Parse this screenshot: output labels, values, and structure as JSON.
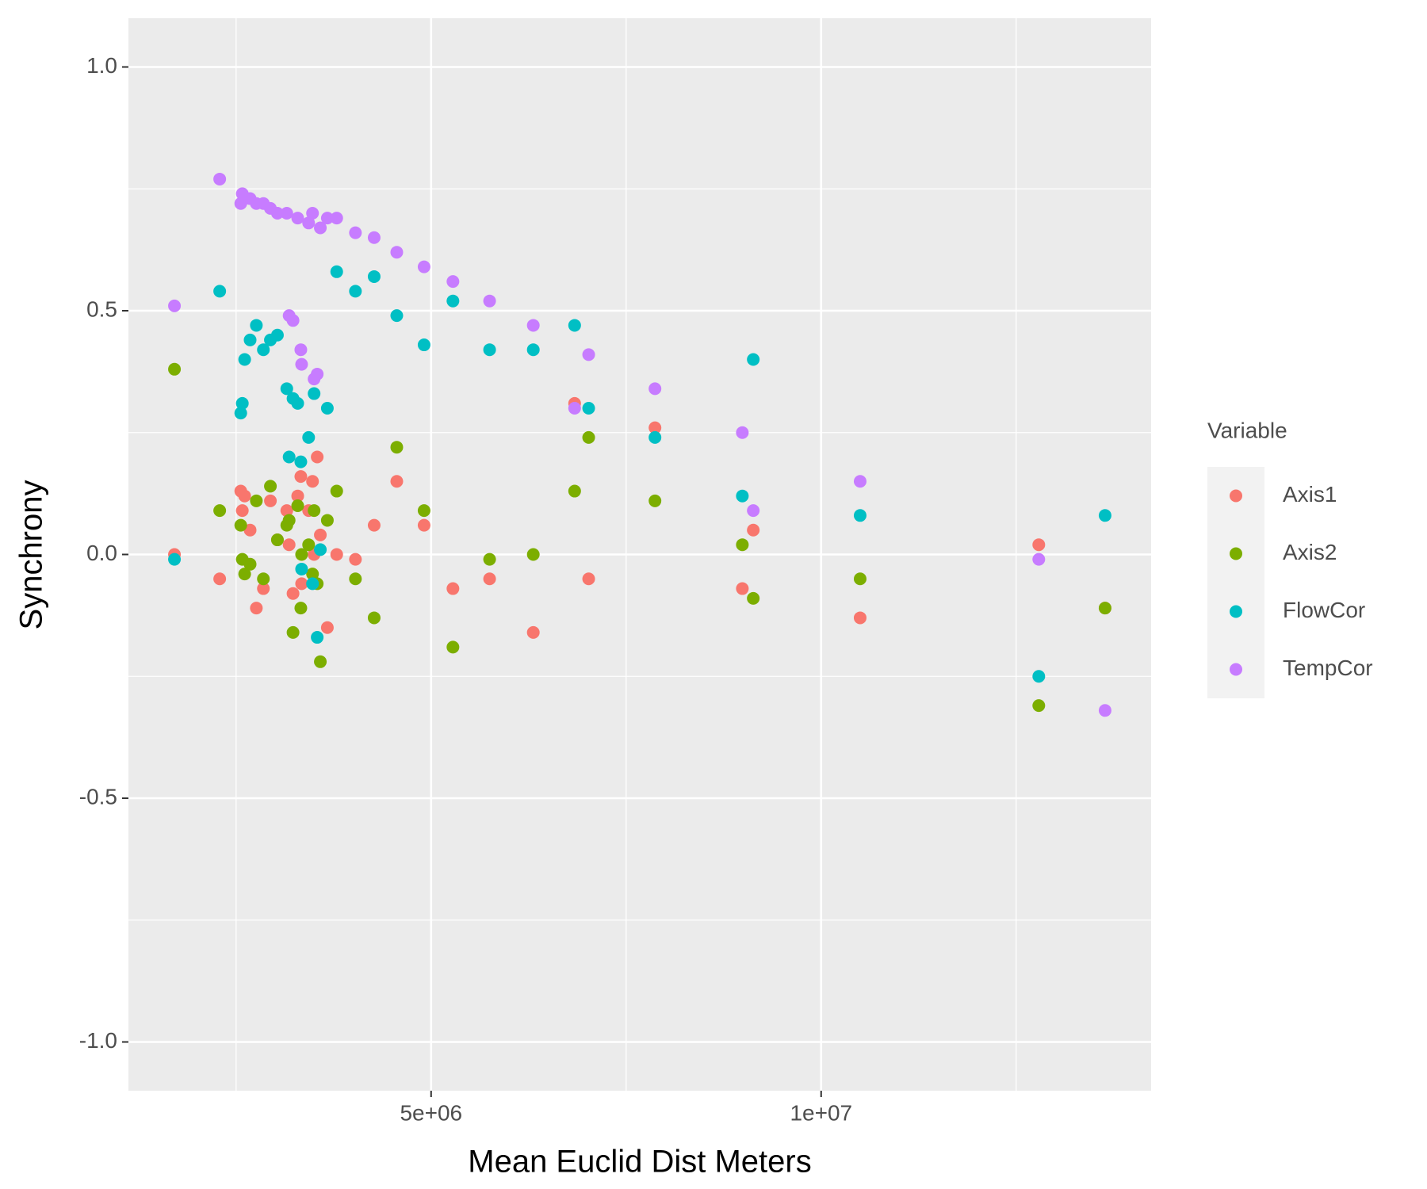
{
  "chart_data": {
    "type": "scatter",
    "x_label": "Mean Euclid Dist Meters",
    "y_label": "Synchrony",
    "legend_title": "Variable",
    "legend_position": "right",
    "grid": true,
    "xlim": [
      1120000,
      14230000
    ],
    "ylim": [
      -1.1,
      1.1
    ],
    "xticks": [
      {
        "value": 5000000,
        "label": "5e+06"
      },
      {
        "value": 10000000,
        "label": "1e+07"
      }
    ],
    "yticks": [
      {
        "value": -1,
        "label": "-1.0"
      },
      -0.5,
      {
        "value": 0,
        "label": "0.0"
      },
      0.5,
      {
        "value": 1,
        "label": "1.0"
      }
    ],
    "x_minor_grid": [
      2500000,
      7500000,
      12500000
    ],
    "y_minor_grid": [
      -0.75,
      -0.25,
      0.25,
      0.75
    ],
    "x": [
      1710000,
      2290000,
      2560000,
      2580000,
      2610000,
      2680000,
      2760000,
      2850000,
      2940000,
      3030000,
      3150000,
      3180000,
      3230000,
      3290000,
      3330000,
      3340000,
      3430000,
      3480000,
      3500000,
      3540000,
      3580000,
      3670000,
      3790000,
      4030000,
      4270000,
      4560000,
      4910000,
      5280000,
      5750000,
      6310000,
      6840000,
      7020000,
      7870000,
      8990000,
      9130000,
      10500000,
      12790000,
      13640000
    ],
    "series": [
      {
        "name": "Axis1",
        "color": "#F8766D",
        "values": [
          0.0,
          -0.05,
          0.13,
          0.09,
          0.12,
          0.05,
          -0.11,
          -0.07,
          0.11,
          0.03,
          0.09,
          0.02,
          -0.08,
          0.12,
          0.16,
          -0.06,
          0.09,
          0.15,
          0.0,
          0.2,
          0.04,
          -0.15,
          0.0,
          -0.01,
          0.06,
          0.15,
          0.06,
          -0.07,
          -0.05,
          -0.16,
          0.31,
          -0.05,
          0.26,
          -0.07,
          0.05,
          -0.13,
          0.02,
          -0.11
        ]
      },
      {
        "name": "Axis2",
        "color": "#7CAE00",
        "values": [
          0.38,
          0.09,
          0.06,
          -0.01,
          -0.04,
          -0.02,
          0.11,
          -0.05,
          0.14,
          0.03,
          0.06,
          0.07,
          -0.16,
          0.1,
          -0.11,
          0.0,
          0.02,
          -0.04,
          0.09,
          -0.06,
          -0.22,
          0.07,
          0.13,
          -0.05,
          -0.13,
          0.22,
          0.09,
          -0.19,
          -0.01,
          0.0,
          0.13,
          0.24,
          0.11,
          0.02,
          -0.09,
          -0.05,
          -0.31,
          -0.11
        ]
      },
      {
        "name": "FlowCor",
        "color": "#00BFC4",
        "values": [
          -0.01,
          0.54,
          0.29,
          0.31,
          0.4,
          0.44,
          0.47,
          0.42,
          0.44,
          0.45,
          0.34,
          0.2,
          0.32,
          0.31,
          0.19,
          -0.03,
          0.24,
          -0.06,
          0.33,
          -0.17,
          0.01,
          0.3,
          0.58,
          0.54,
          0.57,
          0.49,
          0.43,
          0.52,
          0.42,
          0.42,
          0.47,
          0.3,
          0.24,
          0.12,
          0.4,
          0.08,
          -0.25,
          0.08
        ]
      },
      {
        "name": "TempCor",
        "color": "#C77CFF",
        "values": [
          0.51,
          0.77,
          0.72,
          0.74,
          0.73,
          0.73,
          0.72,
          0.72,
          0.71,
          0.7,
          0.7,
          0.49,
          0.48,
          0.69,
          0.42,
          0.39,
          0.68,
          0.7,
          0.36,
          0.37,
          0.67,
          0.69,
          0.69,
          0.66,
          0.65,
          0.62,
          0.59,
          0.56,
          0.52,
          0.47,
          0.3,
          0.41,
          0.34,
          0.25,
          0.09,
          0.15,
          -0.01,
          -0.32
        ]
      }
    ]
  }
}
